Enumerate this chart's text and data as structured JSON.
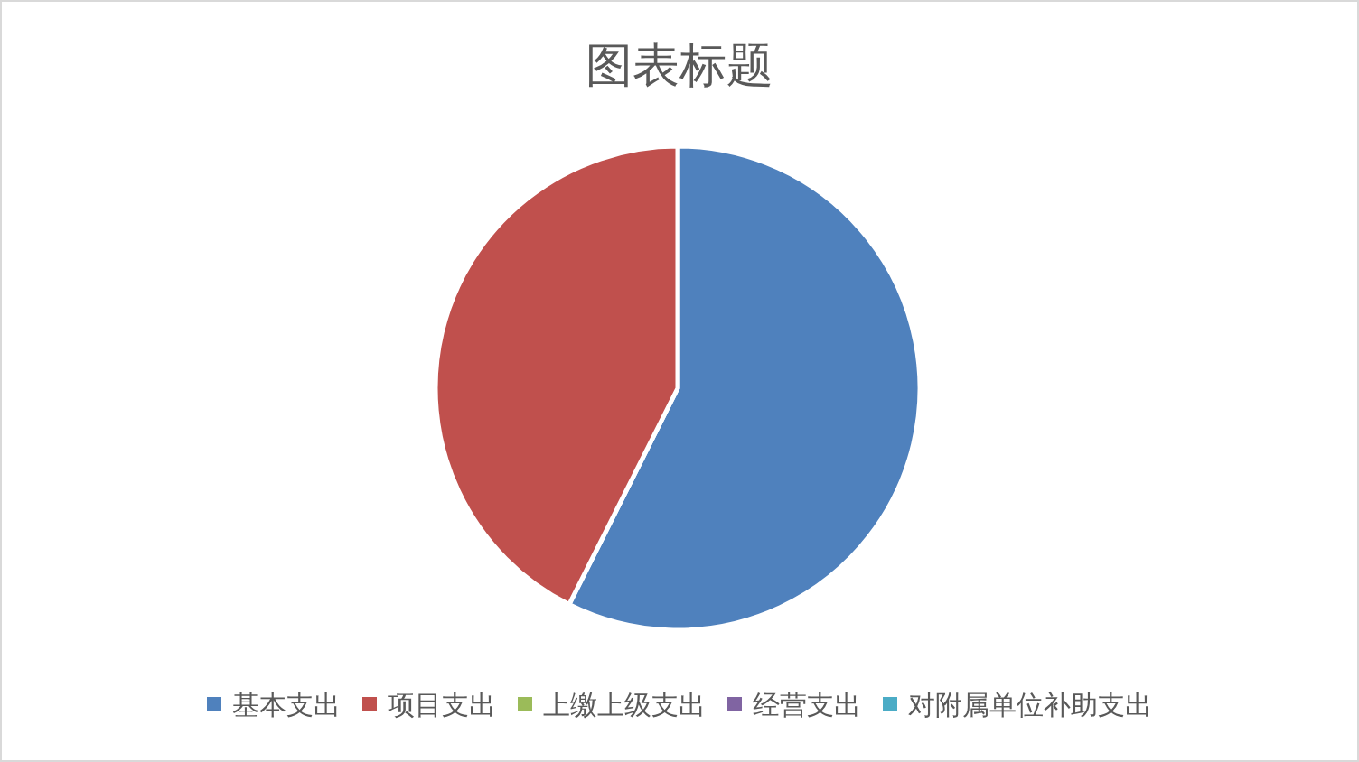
{
  "chart_data": {
    "type": "pie",
    "title": "图表标题",
    "categories": [
      "基本支出",
      "项目支出",
      "上缴上级支出",
      "经营支出",
      "对附属单位补助支出"
    ],
    "values": [
      57.4,
      42.6,
      0,
      0,
      0
    ],
    "colors": [
      "#4f81bd",
      "#c0504d",
      "#9bbb59",
      "#8064a2",
      "#4bacc6"
    ],
    "legend": "bottom"
  }
}
